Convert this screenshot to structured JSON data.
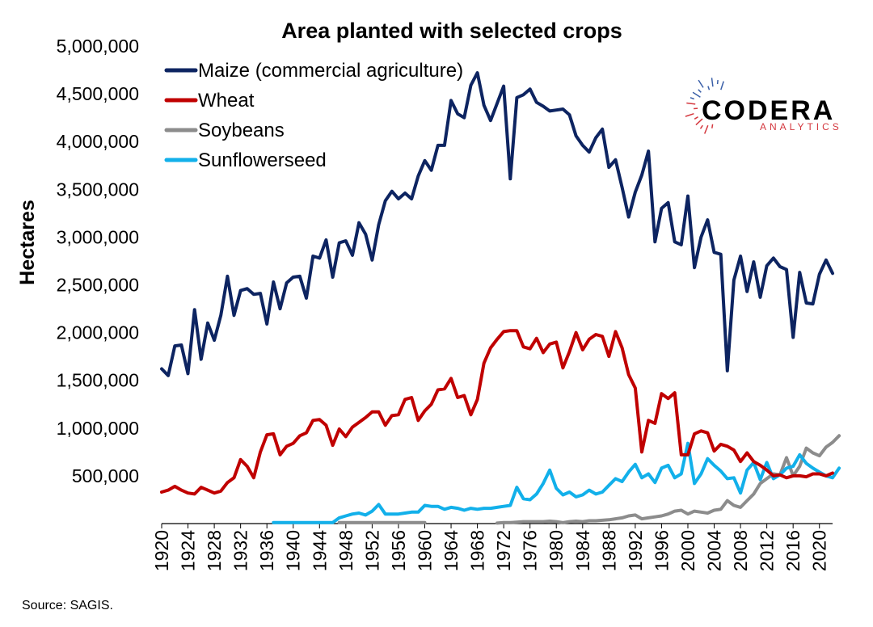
{
  "chart_data": {
    "type": "line",
    "title": "Area planted with selected crops",
    "ylabel": "Hectares",
    "xlabel": "",
    "ylim": [
      0,
      5000000
    ],
    "yticks": [
      500000,
      1000000,
      1500000,
      2000000,
      2500000,
      3000000,
      3500000,
      4000000,
      4500000,
      5000000
    ],
    "ytick_labels": [
      "500,000",
      "1,000,000",
      "1,500,000",
      "2,000,000",
      "2,500,000",
      "3,000,000",
      "3,500,000",
      "4,000,000",
      "4,500,000",
      "5,000,000"
    ],
    "xlim": [
      1920,
      2022
    ],
    "xticks": [
      1920,
      1924,
      1928,
      1932,
      1936,
      1940,
      1944,
      1948,
      1952,
      1956,
      1960,
      1964,
      1968,
      1972,
      1976,
      1980,
      1984,
      1988,
      1992,
      1996,
      2000,
      2004,
      2008,
      2012,
      2016,
      2020
    ],
    "grid": false,
    "legend_position": "top-left",
    "series": [
      {
        "name": "Maize (commercial agriculture)",
        "color": "#0d2461",
        "x_start": 1920,
        "values": [
          1620000,
          1550000,
          1860000,
          1870000,
          1570000,
          2240000,
          1720000,
          2100000,
          1920000,
          2180000,
          2590000,
          2180000,
          2440000,
          2460000,
          2400000,
          2410000,
          2090000,
          2530000,
          2250000,
          2520000,
          2580000,
          2590000,
          2360000,
          2800000,
          2780000,
          2970000,
          2580000,
          2940000,
          2960000,
          2810000,
          3150000,
          3030000,
          2760000,
          3130000,
          3380000,
          3480000,
          3400000,
          3460000,
          3400000,
          3640000,
          3800000,
          3700000,
          3960000,
          3960000,
          4430000,
          4290000,
          4250000,
          4590000,
          4720000,
          4380000,
          4220000,
          4400000,
          4580000,
          3610000,
          4460000,
          4490000,
          4550000,
          4410000,
          4370000,
          4320000,
          4330000,
          4340000,
          4280000,
          4060000,
          3960000,
          3890000,
          4040000,
          4130000,
          3730000,
          3810000,
          3520000,
          3210000,
          3470000,
          3650000,
          3900000,
          2950000,
          3300000,
          3360000,
          2950000,
          2920000,
          3430000,
          2680000,
          3000000,
          3180000,
          2840000,
          2820000,
          1600000,
          2550000,
          2800000,
          2430000,
          2740000,
          2370000,
          2700000,
          2780000,
          2690000,
          2660000,
          1950000,
          2630000,
          2310000,
          2300000,
          2610000,
          2760000,
          2620000
        ]
      },
      {
        "name": "Wheat",
        "color": "#c00000",
        "x_start": 1920,
        "values": [
          330000,
          350000,
          390000,
          350000,
          320000,
          310000,
          380000,
          350000,
          320000,
          340000,
          430000,
          480000,
          670000,
          600000,
          480000,
          750000,
          930000,
          940000,
          720000,
          810000,
          840000,
          920000,
          950000,
          1080000,
          1090000,
          1030000,
          820000,
          990000,
          910000,
          1010000,
          1060000,
          1110000,
          1170000,
          1170000,
          1030000,
          1130000,
          1140000,
          1300000,
          1320000,
          1080000,
          1180000,
          1250000,
          1400000,
          1410000,
          1520000,
          1320000,
          1340000,
          1140000,
          1300000,
          1680000,
          1840000,
          1930000,
          2010000,
          2020000,
          2020000,
          1850000,
          1830000,
          1940000,
          1790000,
          1880000,
          1900000,
          1630000,
          1800000,
          2000000,
          1820000,
          1930000,
          1980000,
          1960000,
          1750000,
          2010000,
          1840000,
          1560000,
          1420000,
          750000,
          1080000,
          1050000,
          1360000,
          1310000,
          1370000,
          720000,
          720000,
          940000,
          970000,
          950000,
          760000,
          830000,
          810000,
          770000,
          650000,
          740000,
          650000,
          610000,
          560000,
          500000,
          510000,
          480000,
          500000,
          500000,
          490000,
          520000,
          520000,
          500000,
          530000
        ]
      },
      {
        "name": "Soybeans",
        "color": "#8c8c8c",
        "segments": [
          {
            "x_start": 1947,
            "values": [
              10000,
              10000,
              10000,
              10000,
              10000,
              10000,
              10000,
              10000,
              10000,
              10000,
              10000,
              10000,
              10000,
              10000
            ]
          },
          {
            "x_start": 1971,
            "values": [
              5000,
              10000,
              10000,
              15000,
              20000,
              20000,
              20000,
              20000,
              25000,
              20000,
              10000,
              20000,
              25000,
              20000,
              30000,
              30000,
              35000,
              40000,
              50000,
              60000,
              80000,
              90000,
              50000,
              60000,
              70000,
              80000,
              100000,
              130000,
              140000,
              100000,
              130000,
              120000,
              110000,
              140000,
              150000,
              240000,
              190000,
              170000,
              240000,
              310000,
              420000,
              470000,
              520000,
              510000,
              690000,
              500000,
              600000,
              790000,
              740000,
              710000,
              800000,
              850000,
              920000
            ]
          }
        ]
      },
      {
        "name": "Sunflowerseed",
        "color": "#12b0ea",
        "x_start": 1937,
        "values": [
          10000,
          10000,
          10000,
          10000,
          10000,
          10000,
          10000,
          10000,
          10000,
          10000,
          60000,
          80000,
          100000,
          110000,
          90000,
          130000,
          200000,
          100000,
          100000,
          100000,
          110000,
          120000,
          120000,
          190000,
          180000,
          180000,
          150000,
          170000,
          160000,
          140000,
          160000,
          150000,
          160000,
          160000,
          170000,
          180000,
          190000,
          380000,
          260000,
          250000,
          310000,
          420000,
          560000,
          370000,
          300000,
          330000,
          280000,
          300000,
          350000,
          310000,
          330000,
          400000,
          470000,
          440000,
          540000,
          620000,
          480000,
          520000,
          430000,
          580000,
          610000,
          480000,
          520000,
          840000,
          420000,
          520000,
          680000,
          610000,
          550000,
          470000,
          480000,
          320000,
          560000,
          640000,
          460000,
          640000,
          470000,
          510000,
          580000,
          600000,
          720000,
          630000,
          580000,
          540000,
          500000,
          480000,
          580000
        ]
      }
    ]
  },
  "source": "Source: SAGIS.",
  "logo": {
    "name": "CODERA",
    "tagline": "ANALYTICS"
  }
}
